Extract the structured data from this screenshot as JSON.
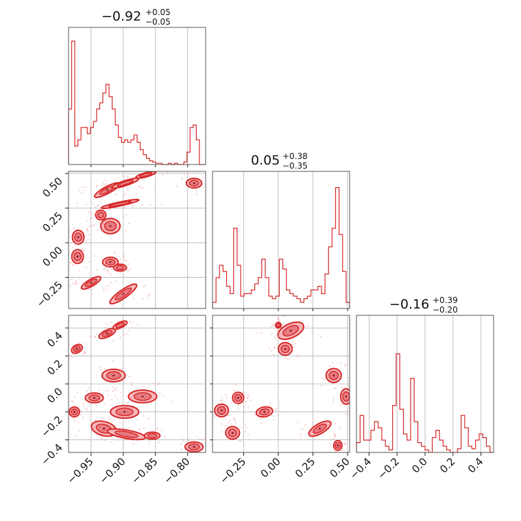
{
  "chart_data": {
    "type": "corner",
    "series_color": "#d62728",
    "fill_color": "#f6b6b9",
    "grid": true,
    "parameters": [
      {
        "range": [
          -0.985,
          -0.772
        ],
        "ticks": [
          -0.95,
          -0.9,
          -0.85,
          -0.8
        ],
        "tick_labels": [
          "−0.95",
          "−0.90",
          "−0.85",
          "−0.80"
        ]
      },
      {
        "range": [
          -0.475,
          0.515
        ],
        "ticks": [
          -0.25,
          0.0,
          0.25,
          0.5
        ],
        "tick_labels": [
          "−0.25",
          "0.00",
          "0.25",
          "0.50"
        ]
      },
      {
        "range": [
          -0.49,
          0.49
        ],
        "ticks": [
          -0.4,
          -0.2,
          0.0,
          0.2,
          0.4
        ],
        "tick_labels": [
          "−0.4",
          "−0.2",
          "0.0",
          "0.2",
          "0.4"
        ]
      }
    ],
    "titles": [
      {
        "main": "−0.92",
        "sup": "+0.05",
        "sub": "−0.05"
      },
      {
        "main": "0.05",
        "sup": "+0.38",
        "sub": "−0.35"
      },
      {
        "main": "−0.16",
        "sup": "+0.39",
        "sub": "−0.20"
      }
    ],
    "histograms": [
      {
        "counts": [
          0.45,
          1.0,
          0.15,
          0.2,
          0.3,
          0.3,
          0.25,
          0.3,
          0.35,
          0.45,
          0.5,
          0.58,
          0.65,
          0.55,
          0.45,
          0.32,
          0.22,
          0.18,
          0.2,
          0.18,
          0.2,
          0.24,
          0.18,
          0.12,
          0.08,
          0.05,
          0.03,
          0.02,
          0.01,
          0.01,
          0.0,
          0.0,
          0.01,
          0.0,
          0.01,
          0.0,
          0.0,
          0.02,
          0.1,
          0.3,
          0.32,
          0.2,
          0.0,
          0.0
        ]
      },
      {
        "counts": [
          0.05,
          0.25,
          0.35,
          0.3,
          0.18,
          0.12,
          0.65,
          0.35,
          0.1,
          0.12,
          0.12,
          0.15,
          0.2,
          0.25,
          0.4,
          0.25,
          0.1,
          0.08,
          0.1,
          0.4,
          0.32,
          0.15,
          0.12,
          0.1,
          0.08,
          0.05,
          0.08,
          0.1,
          0.15,
          0.15,
          0.18,
          0.12,
          0.28,
          0.5,
          0.65,
          0.98,
          0.6,
          0.3,
          0.05
        ]
      },
      {
        "counts": [
          0.08,
          0.3,
          0.1,
          0.1,
          0.18,
          0.25,
          0.2,
          0.1,
          0.05,
          0.02,
          0.38,
          0.8,
          0.35,
          0.15,
          0.1,
          0.6,
          0.25,
          0.08,
          0.05,
          0.02,
          0.0,
          0.12,
          0.18,
          0.1,
          0.05,
          0.02,
          0.0,
          0.0,
          0.03,
          0.3,
          0.2,
          0.05,
          0.03,
          0.1,
          0.15,
          0.12,
          0.05,
          0.0
        ]
      }
    ],
    "blobs_1_vs_0": [
      {
        "cx": -0.925,
        "cy": 0.38,
        "rx": 0.022,
        "ry": 0.025,
        "angle": -28,
        "dots": 1
      },
      {
        "cx": -0.897,
        "cy": 0.43,
        "rx": 0.022,
        "ry": 0.018,
        "angle": -18,
        "dots": 0
      },
      {
        "cx": -0.865,
        "cy": 0.49,
        "rx": 0.016,
        "ry": 0.015,
        "angle": -15,
        "dots": 0
      },
      {
        "cx": -0.79,
        "cy": 0.43,
        "rx": 0.012,
        "ry": 0.035,
        "angle": 0,
        "dots": 1
      },
      {
        "cx": -0.905,
        "cy": 0.28,
        "rx": 0.03,
        "ry": 0.014,
        "angle": -12,
        "dots": 0
      },
      {
        "cx": -0.935,
        "cy": 0.2,
        "rx": 0.008,
        "ry": 0.035,
        "angle": 20,
        "dots": 0
      },
      {
        "cx": -0.92,
        "cy": 0.12,
        "rx": 0.015,
        "ry": 0.055,
        "angle": 0,
        "dots": 1
      },
      {
        "cx": -0.97,
        "cy": 0.04,
        "rx": 0.009,
        "ry": 0.05,
        "angle": 0,
        "dots": 1
      },
      {
        "cx": -0.971,
        "cy": -0.1,
        "rx": 0.009,
        "ry": 0.05,
        "angle": 0,
        "dots": 1
      },
      {
        "cx": -0.92,
        "cy": -0.14,
        "rx": 0.012,
        "ry": 0.035,
        "angle": 0,
        "dots": 1
      },
      {
        "cx": -0.905,
        "cy": -0.18,
        "rx": 0.01,
        "ry": 0.025,
        "angle": 0,
        "dots": 0
      },
      {
        "cx": -0.95,
        "cy": -0.29,
        "rx": 0.017,
        "ry": 0.025,
        "angle": -30,
        "dots": 1
      },
      {
        "cx": -0.9,
        "cy": -0.37,
        "rx": 0.025,
        "ry": 0.03,
        "angle": -35,
        "dots": 1
      }
    ],
    "blobs_2_vs_0": [
      {
        "cx": -0.972,
        "cy": 0.25,
        "rx": 0.009,
        "ry": 0.028,
        "angle": -30,
        "dots": 1
      },
      {
        "cx": -0.925,
        "cy": 0.36,
        "rx": 0.014,
        "ry": 0.025,
        "angle": -25,
        "dots": 1
      },
      {
        "cx": -0.905,
        "cy": 0.42,
        "rx": 0.012,
        "ry": 0.02,
        "angle": -25,
        "dots": 0
      },
      {
        "cx": -0.915,
        "cy": 0.06,
        "rx": 0.018,
        "ry": 0.045,
        "angle": 0,
        "dots": 1
      },
      {
        "cx": -0.945,
        "cy": -0.1,
        "rx": 0.014,
        "ry": 0.035,
        "angle": 0,
        "dots": 1
      },
      {
        "cx": -0.87,
        "cy": -0.09,
        "rx": 0.022,
        "ry": 0.045,
        "angle": 0,
        "dots": 1
      },
      {
        "cx": -0.898,
        "cy": -0.2,
        "rx": 0.022,
        "ry": 0.045,
        "angle": 0,
        "dots": 1
      },
      {
        "cx": -0.976,
        "cy": -0.2,
        "rx": 0.008,
        "ry": 0.035,
        "angle": 0,
        "dots": 1
      },
      {
        "cx": -0.93,
        "cy": -0.32,
        "rx": 0.02,
        "ry": 0.05,
        "angle": 15,
        "dots": 1
      },
      {
        "cx": -0.895,
        "cy": -0.36,
        "rx": 0.03,
        "ry": 0.03,
        "angle": 10,
        "dots": 0
      },
      {
        "cx": -0.855,
        "cy": -0.37,
        "rx": 0.012,
        "ry": 0.025,
        "angle": 0,
        "dots": 0
      },
      {
        "cx": -0.79,
        "cy": -0.45,
        "rx": 0.014,
        "ry": 0.035,
        "angle": 0,
        "dots": 1
      }
    ],
    "blobs_2_vs_1": [
      {
        "cx": 0.0,
        "cy": 0.42,
        "rx": 0.02,
        "ry": 0.02,
        "angle": 0,
        "dots": 0
      },
      {
        "cx": 0.09,
        "cy": 0.38,
        "rx": 0.1,
        "ry": 0.05,
        "angle": -25,
        "dots": 1
      },
      {
        "cx": 0.05,
        "cy": 0.25,
        "rx": 0.05,
        "ry": 0.045,
        "angle": 0,
        "dots": 1
      },
      {
        "cx": 0.4,
        "cy": 0.06,
        "rx": 0.055,
        "ry": 0.05,
        "angle": 0,
        "dots": 1
      },
      {
        "cx": 0.49,
        "cy": -0.09,
        "rx": 0.04,
        "ry": 0.055,
        "angle": 0,
        "dots": 1
      },
      {
        "cx": -0.29,
        "cy": -0.1,
        "rx": 0.04,
        "ry": 0.04,
        "angle": 0,
        "dots": 1
      },
      {
        "cx": -0.41,
        "cy": -0.19,
        "rx": 0.05,
        "ry": 0.045,
        "angle": 0,
        "dots": 1
      },
      {
        "cx": -0.1,
        "cy": -0.2,
        "rx": 0.06,
        "ry": 0.035,
        "angle": -10,
        "dots": 1
      },
      {
        "cx": -0.33,
        "cy": -0.35,
        "rx": 0.05,
        "ry": 0.045,
        "angle": 0,
        "dots": 1
      },
      {
        "cx": 0.3,
        "cy": -0.32,
        "rx": 0.09,
        "ry": 0.035,
        "angle": -30,
        "dots": 1
      },
      {
        "cx": 0.43,
        "cy": -0.44,
        "rx": 0.03,
        "ry": 0.035,
        "angle": 0,
        "dots": 1
      }
    ]
  }
}
